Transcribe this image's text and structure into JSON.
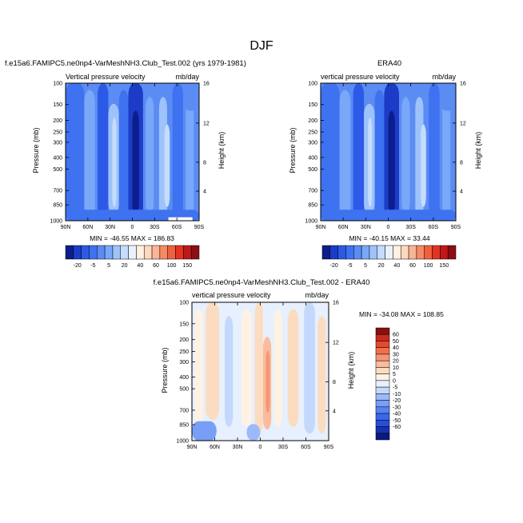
{
  "page_title": "DJF",
  "colors": {
    "model_obs_scale": [
      "#0c1e8c",
      "#1c3cc8",
      "#2c5ae6",
      "#3e72f0",
      "#5a8cf4",
      "#7aa8f8",
      "#9ec2fa",
      "#c6dcfc",
      "#e8f2ff",
      "#fff0e0",
      "#fcd8bc",
      "#fab496",
      "#f68a64",
      "#f0603c",
      "#e23420",
      "#c0181a",
      "#8e0e14"
    ],
    "diff_scale": [
      "#0a1a80",
      "#1632b4",
      "#2a4ed8",
      "#3c66ec",
      "#5682f2",
      "#789ef6",
      "#9cbafa",
      "#c4d8fc",
      "#e6f0ff",
      "#fff2e4",
      "#fcdcc0",
      "#fabc9c",
      "#f69672",
      "#f0704c",
      "#e44a2e",
      "#c82a1c",
      "#8c0e0e"
    ]
  },
  "chart_data": [
    {
      "type": "heatmap",
      "title": "f.e15a6.FAMIPC5.ne0np4-VarMeshNH3.Club_Test.002 (yrs 1979-1981)",
      "left_label": "Vertical pressure velocity",
      "right_label": "mb/day",
      "ylabel": "Pressure (mb)",
      "y2label": "Height (km)",
      "x_ticks": [
        "90N",
        "60N",
        "30N",
        "0",
        "30S",
        "60S",
        "90S"
      ],
      "y_ticks": [
        "100",
        "150",
        "200",
        "250",
        "300",
        "400",
        "500",
        "700",
        "850",
        "1000"
      ],
      "y2_ticks": [
        "4",
        "8",
        "12",
        "16"
      ],
      "stats": "MIN = -46.55   MAX = 186.83",
      "colorbar_labels": [
        "-20",
        "-5",
        "5",
        "20",
        "40",
        "60",
        "100",
        "150"
      ]
    },
    {
      "type": "heatmap",
      "title": "ERA40",
      "left_label": "vertical pressure velocity",
      "right_label": "mb/day",
      "ylabel": "Pressure (mb)",
      "y2label": "Height (km)",
      "x_ticks": [
        "90N",
        "60N",
        "30N",
        "0",
        "30S",
        "60S",
        "90S"
      ],
      "y_ticks": [
        "100",
        "150",
        "200",
        "250",
        "300",
        "400",
        "500",
        "700",
        "850",
        "1000"
      ],
      "y2_ticks": [
        "4",
        "8",
        "12",
        "16"
      ],
      "stats": "MIN = -40.15   MAX =  33.44",
      "colorbar_labels": [
        "-20",
        "-5",
        "5",
        "20",
        "40",
        "60",
        "100",
        "150"
      ]
    },
    {
      "type": "heatmap",
      "title": "f.e15a6.FAMIPC5.ne0np4-VarMeshNH3.Club_Test.002 - ERA40",
      "left_label": "vertical pressure velocity",
      "right_label": "mb/day",
      "ylabel": "Pressure (mb)",
      "y2label": "Height (km)",
      "x_ticks": [
        "90N",
        "60N",
        "30N",
        "0",
        "30S",
        "60S",
        "90S"
      ],
      "y_ticks": [
        "100",
        "150",
        "200",
        "250",
        "300",
        "400",
        "500",
        "700",
        "850",
        "1000"
      ],
      "y2_ticks": [
        "4",
        "8",
        "12",
        "16"
      ],
      "stats": "MIN = -34.08  MAX = 108.85",
      "colorbar_labels": [
        "60",
        "50",
        "40",
        "30",
        "20",
        "10",
        "5",
        "0",
        "-5",
        "-10",
        "-20",
        "-30",
        "-40",
        "-50",
        "-60"
      ]
    }
  ]
}
